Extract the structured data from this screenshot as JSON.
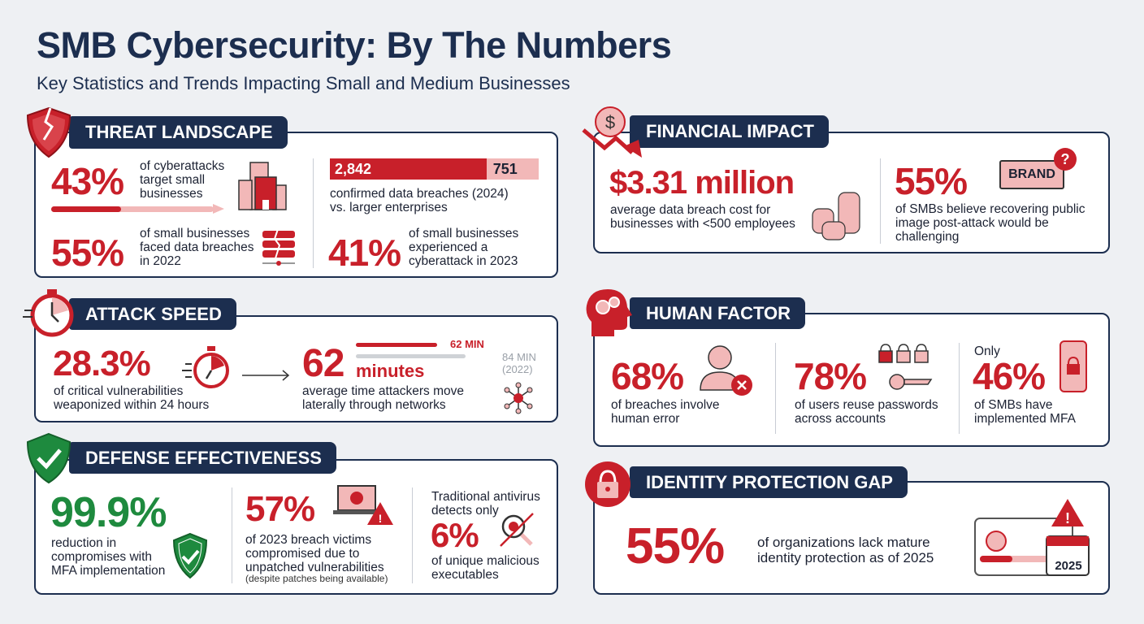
{
  "header": {
    "title": "SMB Cybersecurity: By The Numbers",
    "subtitle": "Key Statistics and Trends Impacting Small and Medium Businesses"
  },
  "colors": {
    "navy": "#1c2e4f",
    "red": "#c8202a",
    "green": "#1e8a3e",
    "pink": "#f2b8b8",
    "background": "#eef0f3"
  },
  "threat": {
    "title": "THREAT LANDSCAPE",
    "icon": "broken-shield-icon",
    "s1": {
      "value": "43%",
      "text1": "of cyberattacks",
      "text2": "target small",
      "text3": "businesses",
      "progress": 0.43
    },
    "s2": {
      "value": "55%",
      "text1": "of small businesses",
      "text2": "faced data breaches",
      "text3": "in 2022"
    },
    "s3": {
      "small_value": "2,842",
      "large_value": "751",
      "text1": "confirmed data breaches (2024)",
      "text2": "vs. larger enterprises"
    },
    "s4": {
      "value": "41%",
      "text1": "of small businesses",
      "text2": "experienced a",
      "text3": "cyberattack in 2023"
    }
  },
  "speed": {
    "title": "ATTACK SPEED",
    "icon": "stopwatch-icon",
    "s1": {
      "value": "28.3%",
      "text1": "of critical vulnerabilities",
      "text2": "weaponized within 24 hours"
    },
    "s2": {
      "value": "62",
      "unit": "minutes",
      "text1": "average time attackers move",
      "text2": "laterally through networks",
      "bar_current": "62 MIN",
      "bar_prev": "84 MIN",
      "bar_prev_year": "(2022)",
      "current_min": 62,
      "prev_min": 84
    }
  },
  "defense": {
    "title": "DEFENSE EFFECTIVENESS",
    "icon": "shield-check-icon",
    "s1": {
      "value": "99.9%",
      "text1": "reduction in",
      "text2": "compromises with",
      "text3": "MFA implementation"
    },
    "s2": {
      "value": "57%",
      "text1": "of 2023 breach victims",
      "text2": "compromised due to",
      "text3": "unpatched vulnerabilities",
      "note": "(despite patches being available)"
    },
    "s3": {
      "pre1": "Traditional antivirus",
      "pre2": "detects only",
      "value": "6%",
      "text1": "of unique malicious",
      "text2": "executables"
    }
  },
  "financial": {
    "title": "FINANCIAL IMPACT",
    "icon": "dollar-down-icon",
    "s1": {
      "value": "$3.31 million",
      "text1": "average data breach cost for",
      "text2": "businesses with <500 employees"
    },
    "s2": {
      "value": "55%",
      "brand": "BRAND",
      "text1": "of SMBs believe recovering public",
      "text2": "image post-attack would be",
      "text3": "challenging"
    }
  },
  "human": {
    "title": "HUMAN FACTOR",
    "icon": "head-gears-icon",
    "s1": {
      "value": "68%",
      "text1": "of breaches involve",
      "text2": "human error"
    },
    "s2": {
      "value": "78%",
      "text1": "of users reuse passwords",
      "text2": "across accounts"
    },
    "s3": {
      "pre": "Only",
      "value": "46%",
      "text1": "of SMBs have",
      "text2": "implemented MFA"
    }
  },
  "identity": {
    "title": "IDENTITY PROTECTION GAP",
    "icon": "padlock-icon",
    "s1": {
      "value": "55%",
      "text1": "of organizations lack mature",
      "text2": "identity protection as of 2025",
      "year": "2025"
    }
  }
}
